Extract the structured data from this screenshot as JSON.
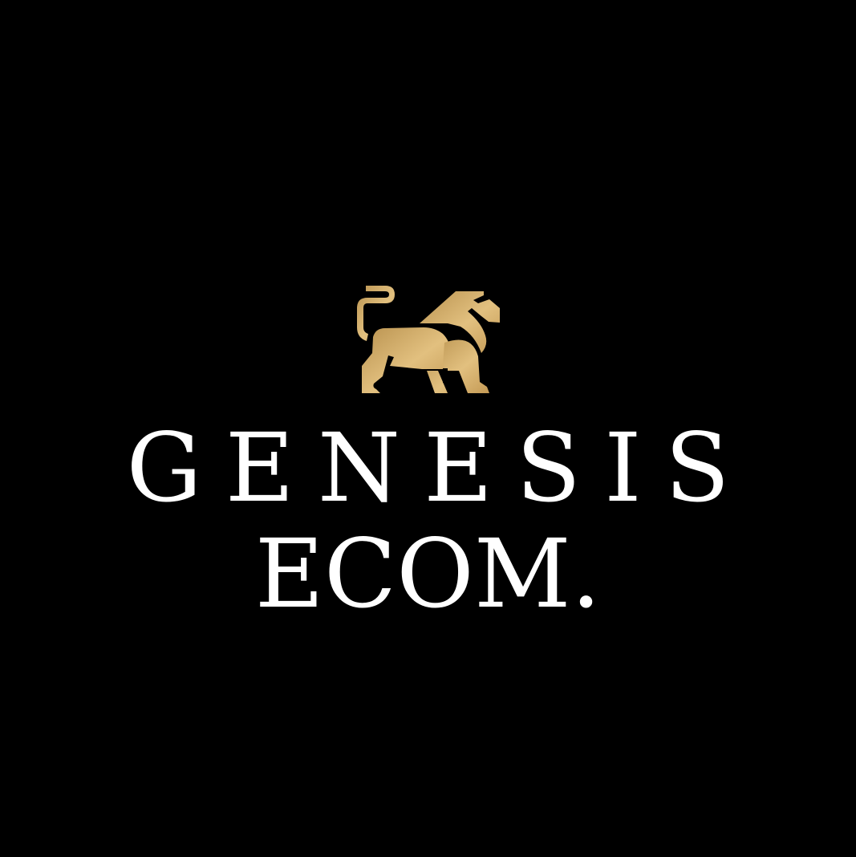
{
  "brand": {
    "logo_icon": "lion-icon",
    "logo_color_start": "#c9a45f",
    "logo_color_end": "#eacb8a",
    "line1": "GENESIS",
    "line2": "ECOM."
  },
  "colors": {
    "background": "#000000",
    "text": "#ffffff"
  }
}
